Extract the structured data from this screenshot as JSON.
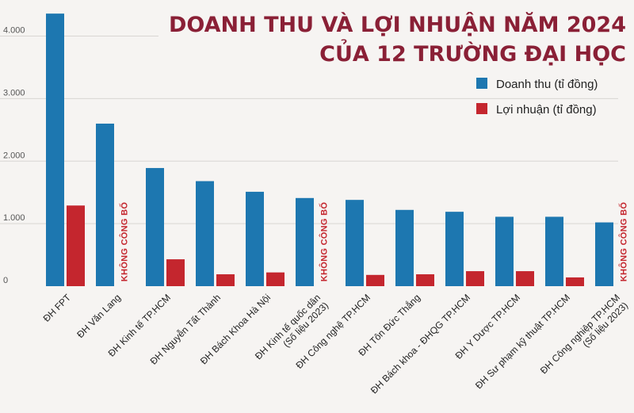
{
  "chart_data": {
    "type": "bar",
    "title_lines": [
      "DOANH THU VÀ LỢI NHUẬN NĂM 2024",
      "CỦA 12 TRƯỜNG ĐẠI HỌC"
    ],
    "categories": [
      [
        "ĐH FPT"
      ],
      [
        "ĐH Văn Lang"
      ],
      [
        "ĐH Kinh tế TP.HCM"
      ],
      [
        "ĐH Nguyễn Tất Thành"
      ],
      [
        "ĐH Bách Khoa Hà Nội"
      ],
      [
        "ĐH Kinh tế quốc dân",
        "(Số liệu 2023)"
      ],
      [
        "ĐH Công nghệ TP.HCM"
      ],
      [
        "ĐH Tôn Đức Thắng"
      ],
      [
        "ĐH Bách khoa - ĐHQG TP.HCM"
      ],
      [
        "ĐH Y Dược TP.HCM"
      ],
      [
        "ĐH Sư phạm kỹ thuật TP.HCM"
      ],
      [
        "ĐH Công nghiệp TP.HCM",
        "(Số liệu 2023)"
      ]
    ],
    "series": [
      {
        "name": "Doanh thu (tỉ đồng)",
        "color": "#1d77b0",
        "values": [
          4360,
          2600,
          1890,
          1680,
          1510,
          1410,
          1380,
          1220,
          1190,
          1110,
          1110,
          1020
        ]
      },
      {
        "name": "Lợi nhuận (tỉ đồng)",
        "color": "#c4262e",
        "values": [
          1290,
          null,
          430,
          190,
          220,
          null,
          180,
          190,
          240,
          240,
          140,
          null
        ]
      }
    ],
    "no_data_label": "KHÔNG CÔNG BỐ",
    "yticks": [
      0,
      1000,
      2000,
      3000,
      4000
    ],
    "ytick_labels": [
      "0",
      "1.000",
      "2.000",
      "3.000",
      "4.000"
    ],
    "ylim": [
      0,
      4400
    ],
    "legend_position": "top-right",
    "grid": true,
    "xlabel": "",
    "ylabel": ""
  }
}
